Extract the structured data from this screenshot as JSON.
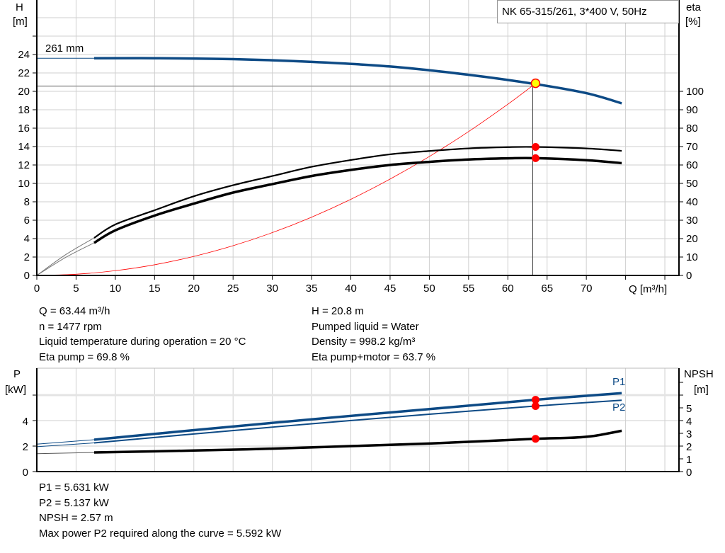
{
  "colors": {
    "blue": "#0d4a85",
    "red": "#ff0000",
    "yellow": "#ffff00",
    "grid": "#cfcfcf",
    "black": "#000000"
  },
  "chart_data": [
    {
      "type": "line",
      "title": "NK 65-315/261, 3*400 V, 50Hz",
      "xlabel": "Q [m³/h]",
      "ylabel_top": "H",
      "ylabel_unit": "[m]",
      "y2label_top": "eta",
      "y2label_unit": "[%]",
      "xlim": [
        0,
        81.8
      ],
      "ylim": [
        0,
        29.9
      ],
      "y2lim": [
        0,
        115
      ],
      "grid": true,
      "x_ticks": [
        "0",
        "5",
        "10",
        "15",
        "20",
        "25",
        "30",
        "35",
        "40",
        "45",
        "50",
        "55",
        "60",
        "65",
        "70"
      ],
      "y_ticks": [
        "0",
        "2",
        "4",
        "6",
        "8",
        "10",
        "12",
        "14",
        "16",
        "18",
        "20",
        "22",
        "24"
      ],
      "y2_ticks": [
        "0",
        "10",
        "20",
        "30",
        "40",
        "50",
        "60",
        "70",
        "80",
        "90",
        "100"
      ],
      "curve_label": "261 mm",
      "series": [
        {
          "name": "261 mm",
          "axis": "H",
          "color": "#0d4a85",
          "x": [
            7.3,
            15,
            25,
            35,
            45,
            55,
            63.44,
            70,
            74.5
          ],
          "y": [
            23.6,
            23.6,
            23.5,
            23.2,
            22.7,
            21.8,
            20.8,
            19.8,
            18.7
          ]
        },
        {
          "axis": "eta",
          "color": "#000000",
          "x": [
            7.3,
            10,
            15,
            20,
            25,
            30,
            35,
            40,
            45,
            50,
            55,
            60,
            63.44,
            70,
            74.5
          ],
          "y": [
            20.4,
            27.7,
            35.4,
            43,
            49,
            54,
            59,
            62.7,
            65.8,
            67.6,
            69,
            69.7,
            69.8,
            69,
            67.7
          ]
        },
        {
          "axis": "eta",
          "color": "#000000",
          "x": [
            7.3,
            10,
            15,
            20,
            25,
            30,
            35,
            40,
            45,
            50,
            55,
            60,
            63.44,
            70,
            74.5
          ],
          "y": [
            17.7,
            24.5,
            32.5,
            39,
            45,
            49.6,
            54,
            57.3,
            60,
            61.7,
            63,
            63.6,
            63.7,
            62.6,
            61
          ]
        },
        {
          "axis": "H",
          "color": "#ff0000",
          "x": [
            0,
            5,
            10,
            15,
            20,
            25,
            30,
            35,
            40,
            45,
            50,
            55,
            60,
            63.44
          ],
          "y": [
            0,
            0.13,
            0.52,
            1.16,
            2.07,
            3.23,
            4.65,
            6.33,
            8.27,
            10.47,
            12.92,
            15.63,
            18.6,
            20.8
          ]
        }
      ],
      "duty_point": {
        "Q": 63.44,
        "H": 20.8,
        "eta_pump": 69.8,
        "eta_pump_motor": 63.7
      }
    },
    {
      "type": "line",
      "ylabel_top": "P",
      "ylabel_unit": "[kW]",
      "y2label_top": "NPSH",
      "y2label_unit": "[m]",
      "xlim": [
        0,
        81.8
      ],
      "ylim": [
        0,
        8.05
      ],
      "y2lim": [
        0,
        8.05
      ],
      "grid": true,
      "y_ticks": [
        "0",
        "2",
        "4"
      ],
      "y2_ticks": [
        "0",
        "1",
        "2",
        "3",
        "4",
        "5"
      ],
      "series": [
        {
          "name": "P1",
          "axis": "P",
          "color": "#0d4a85",
          "x": [
            0,
            7.3,
            20,
            35,
            50,
            63.44,
            74.5
          ],
          "y": [
            2.15,
            2.5,
            3.25,
            4.1,
            4.9,
            5.631,
            6.15
          ]
        },
        {
          "name": "P2",
          "axis": "P",
          "color": "#0d4a85",
          "x": [
            0,
            7.3,
            20,
            35,
            50,
            63.44,
            74.5
          ],
          "y": [
            1.95,
            2.25,
            2.95,
            3.75,
            4.5,
            5.137,
            5.6
          ]
        },
        {
          "axis": "NPSH",
          "color": "#000000",
          "x": [
            0,
            7.3,
            20,
            30,
            40,
            50,
            63.44,
            68,
            71,
            74.5
          ],
          "y": [
            1.4,
            1.5,
            1.65,
            1.8,
            2.0,
            2.2,
            2.57,
            2.65,
            2.8,
            3.2
          ]
        }
      ]
    }
  ],
  "info_top_left": [
    "Q = 63.44 m³/h",
    "n = 1477 rpm",
    "Liquid temperature during operation = 20 °C",
    "Eta pump = 69.8 %"
  ],
  "info_top_right": [
    "H = 20.8 m",
    "Pumped liquid = Water",
    "Density = 998.2 kg/m³",
    "Eta pump+motor = 63.7 %"
  ],
  "info_bottom": [
    "P1 = 5.631 kW",
    "P2 = 5.137 kW",
    "NPSH = 2.57 m",
    "Max power P2 required along the curve = 5.592 kW"
  ]
}
